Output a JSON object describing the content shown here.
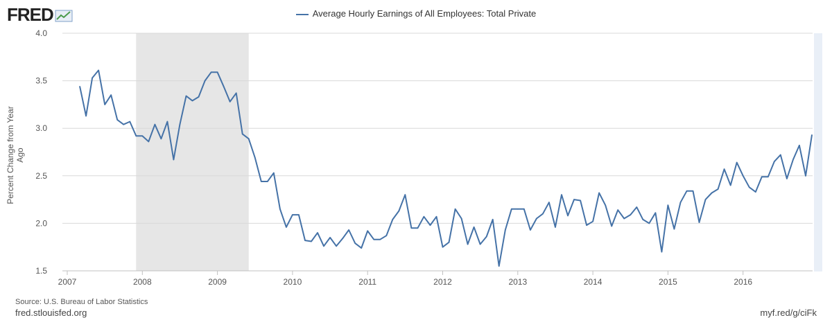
{
  "brand": "FRED",
  "footer": {
    "source": "Source: U.S. Bureau of Labor Statistics",
    "site": "fred.stlouisfed.org",
    "shortlink": "myf.red/g/ciFk"
  },
  "chart_data": {
    "type": "line",
    "title": "",
    "legend": [
      "Average Hourly Earnings of All Employees: Total Private"
    ],
    "legend_position": "top-center",
    "xlabel": "",
    "ylabel": "Percent Change from Year Ago",
    "ylim": [
      1.5,
      4.0
    ],
    "yticks": [
      "1.5",
      "2.0",
      "2.5",
      "3.0",
      "3.5",
      "4.0"
    ],
    "xticks": [
      "2007",
      "2008",
      "2009",
      "2010",
      "2011",
      "2012",
      "2013",
      "2014",
      "2015",
      "2016"
    ],
    "grid": true,
    "recession_shading": {
      "start": "2007-12",
      "end": "2009-06"
    },
    "start": "2007-03",
    "frequency": "monthly",
    "color": "#4572a7",
    "series": [
      {
        "name": "Average Hourly Earnings of All Employees: Total Private",
        "values": [
          3.44,
          3.13,
          3.53,
          3.61,
          3.25,
          3.35,
          3.09,
          3.04,
          3.07,
          2.92,
          2.92,
          2.86,
          3.04,
          2.89,
          3.07,
          2.67,
          3.04,
          3.34,
          3.29,
          3.33,
          3.5,
          3.59,
          3.59,
          3.44,
          3.28,
          3.37,
          2.94,
          2.89,
          2.69,
          2.44,
          2.44,
          2.53,
          2.15,
          1.96,
          2.09,
          2.09,
          1.82,
          1.81,
          1.9,
          1.76,
          1.85,
          1.76,
          1.84,
          1.93,
          1.79,
          1.74,
          1.92,
          1.83,
          1.83,
          1.87,
          2.04,
          2.13,
          2.3,
          1.95,
          1.95,
          2.07,
          1.98,
          2.07,
          1.75,
          1.8,
          2.15,
          2.05,
          1.78,
          1.96,
          1.78,
          1.86,
          2.04,
          1.55,
          1.93,
          2.15,
          2.15,
          2.15,
          1.93,
          2.05,
          2.1,
          2.22,
          1.96,
          2.3,
          2.08,
          2.25,
          2.24,
          1.98,
          2.02,
          2.32,
          2.19,
          1.97,
          2.14,
          2.05,
          2.09,
          2.17,
          2.04,
          2.0,
          2.11,
          1.7,
          2.19,
          1.94,
          2.22,
          2.34,
          2.34,
          2.01,
          2.25,
          2.32,
          2.36,
          2.57,
          2.4,
          2.64,
          2.5,
          2.38,
          2.33,
          2.49,
          2.49,
          2.65,
          2.72,
          2.47,
          2.67,
          2.82,
          2.5,
          2.93
        ]
      }
    ]
  }
}
